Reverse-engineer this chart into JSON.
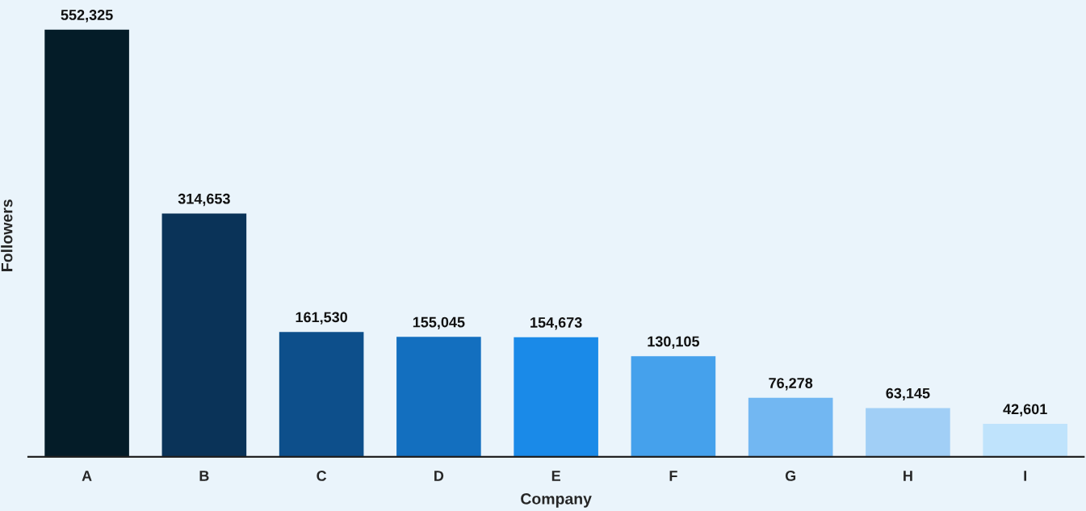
{
  "chart_data": {
    "type": "bar",
    "xlabel": "Company",
    "ylabel": "Followers",
    "categories": [
      "A",
      "B",
      "C",
      "D",
      "E",
      "F",
      "G",
      "H",
      "I"
    ],
    "values": [
      552325,
      314653,
      161530,
      155045,
      154673,
      130105,
      76278,
      63145,
      42601
    ],
    "colors": [
      "#041c28",
      "#0a3358",
      "#0d4f8b",
      "#136fbf",
      "#1a8ae8",
      "#45a1ec",
      "#72b7f2",
      "#a1cff6",
      "#bfe3fc"
    ],
    "value_labels": [
      "552,325",
      "314,653",
      "161,530",
      "155,045",
      "154,673",
      "130,105",
      "76,278",
      "63,145",
      "42,601"
    ],
    "tick_labels": "x"
  }
}
